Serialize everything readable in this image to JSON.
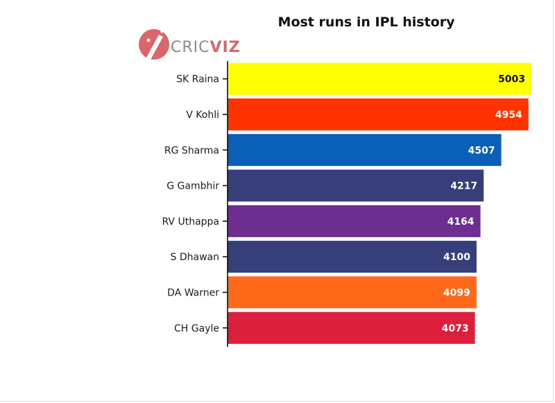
{
  "logo": {
    "text_a": "CRIC",
    "text_b": "VIZ",
    "color_a": "#8a8a8a",
    "color_b": "#d9666b"
  },
  "chart_data": {
    "type": "bar",
    "orientation": "horizontal",
    "title": "Most runs in IPL history",
    "xlabel": "",
    "ylabel": "",
    "xlim": [
      0,
      5003
    ],
    "grid": false,
    "categories": [
      "SK Raina",
      "V Kohli",
      "RG Sharma",
      "G Gambhir",
      "RV Uthappa",
      "S Dhawan",
      "DA Warner",
      "CH Gayle"
    ],
    "values": [
      5003,
      4954,
      4507,
      4217,
      4164,
      4100,
      4099,
      4073
    ],
    "colors": [
      "#ffff00",
      "#ff3300",
      "#0a5fb8",
      "#363f7a",
      "#6e2d91",
      "#363f7a",
      "#ff6a1a",
      "#dc1f3d"
    ],
    "label_colors": [
      "#111111",
      "#ffffff",
      "#ffffff",
      "#ffffff",
      "#ffffff",
      "#ffffff",
      "#ffffff",
      "#ffffff"
    ]
  }
}
